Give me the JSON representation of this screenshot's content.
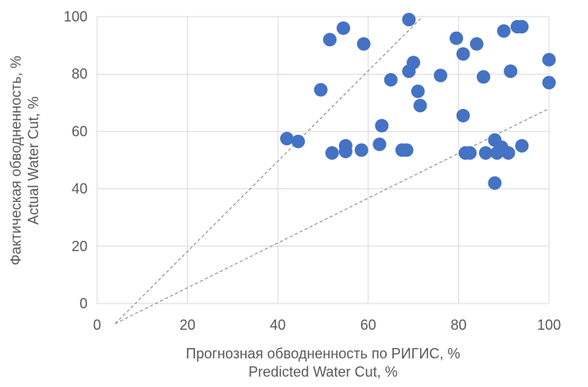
{
  "chart_data": {
    "type": "scatter",
    "xlabel": [
      "Прогнозная обводненность по РИГИС, %",
      "Predicted Water Cut, %"
    ],
    "ylabel": [
      "Фактическая обводненность, %",
      "Actual Water Cut, %"
    ],
    "xlim": [
      0,
      100
    ],
    "ylim": [
      0,
      100
    ],
    "xticks": [
      0,
      20,
      40,
      60,
      80,
      100
    ],
    "yticks": [
      0,
      20,
      40,
      60,
      80,
      100
    ],
    "grid": true,
    "marker_color": "#4472c4",
    "series": [
      {
        "points": [
          [
            42,
            57.5
          ],
          [
            44.5,
            56.5
          ],
          [
            49.5,
            74.5
          ],
          [
            51.5,
            92
          ],
          [
            52,
            52.5
          ],
          [
            54.5,
            96
          ],
          [
            55,
            55
          ],
          [
            55,
            53
          ],
          [
            58.5,
            53.5
          ],
          [
            59,
            90.5
          ],
          [
            62.5,
            55.5
          ],
          [
            63,
            62
          ],
          [
            65,
            78
          ],
          [
            67.5,
            53.5
          ],
          [
            68.5,
            53.5
          ],
          [
            69,
            81
          ],
          [
            69,
            99
          ],
          [
            70,
            84
          ],
          [
            71,
            74
          ],
          [
            71.5,
            69
          ],
          [
            76,
            79.5
          ],
          [
            79.5,
            92.5
          ],
          [
            81,
            65.5
          ],
          [
            81,
            87
          ],
          [
            81.5,
            52.5
          ],
          [
            82.5,
            52.5
          ],
          [
            84,
            90.5
          ],
          [
            85.5,
            79
          ],
          [
            86,
            52.5
          ],
          [
            88,
            57
          ],
          [
            88,
            42
          ],
          [
            88.5,
            52.5
          ],
          [
            89.5,
            54.5
          ],
          [
            90,
            95
          ],
          [
            91,
            52.5
          ],
          [
            91.5,
            81
          ],
          [
            93,
            96.5
          ],
          [
            94,
            96.5
          ],
          [
            94,
            55
          ],
          [
            100,
            85
          ],
          [
            100,
            77
          ]
        ]
      }
    ],
    "reference_lines": [
      {
        "style": "dashed",
        "color": "#808080",
        "from": [
          4,
          -7
        ],
        "to": [
          72,
          100
        ]
      },
      {
        "style": "dashed",
        "color": "#808080",
        "from": [
          4,
          -7
        ],
        "to": [
          100,
          68
        ]
      }
    ]
  }
}
